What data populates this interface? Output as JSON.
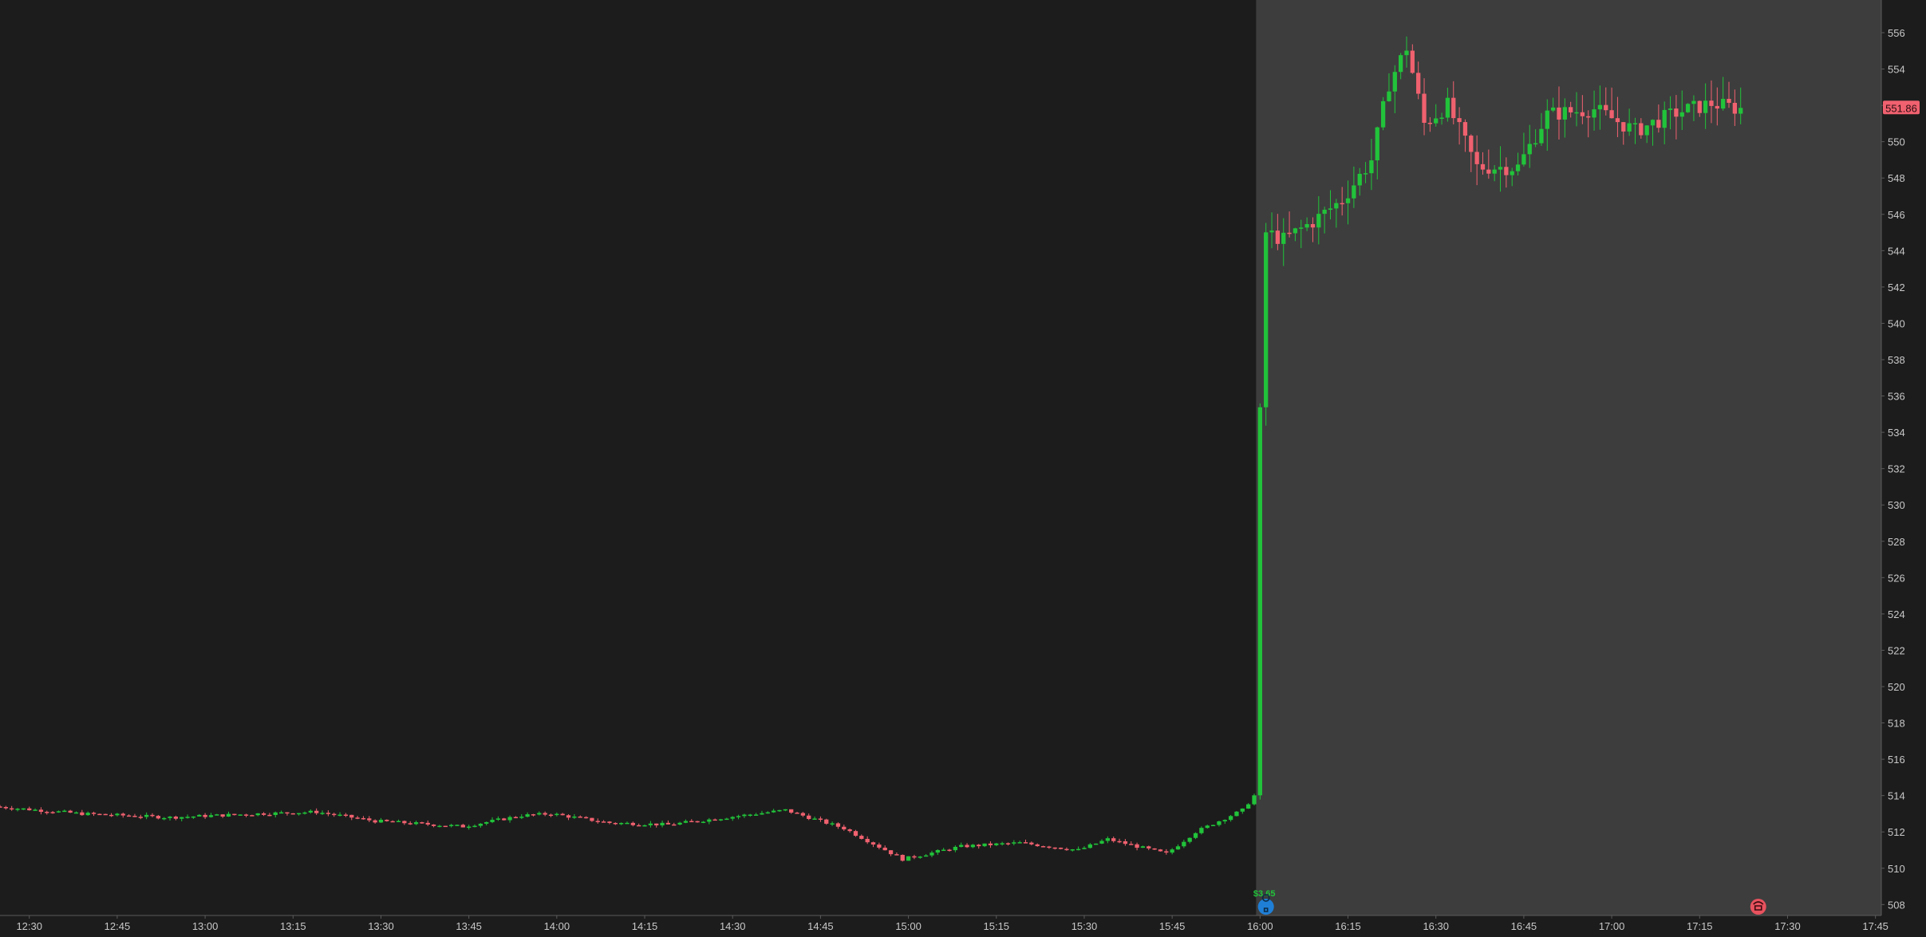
{
  "chart_data": {
    "type": "candlestick",
    "x_ticks": [
      "12:30",
      "12:45",
      "13:00",
      "13:15",
      "13:30",
      "13:45",
      "14:00",
      "14:15",
      "14:30",
      "14:45",
      "15:00",
      "15:15",
      "15:30",
      "15:45",
      "16:00",
      "16:15",
      "16:30",
      "16:45",
      "17:00",
      "17:15",
      "17:30",
      "17:45"
    ],
    "y_ticks": [
      508,
      510,
      512,
      514,
      516,
      518,
      520,
      522,
      524,
      526,
      528,
      530,
      532,
      534,
      536,
      538,
      540,
      542,
      544,
      546,
      548,
      550,
      552,
      554,
      556
    ],
    "ylim": [
      507.4,
      557.8
    ],
    "xlim": [
      "12:25",
      "17:46"
    ],
    "extended_hours_start": "16:00",
    "last_price": "551.86",
    "earnings_marker": {
      "value": "$3.65",
      "time": "16:01"
    },
    "dividend_marker": {
      "time": "17:25"
    },
    "colors": {
      "up": "#21c33a",
      "down": "#f0616f",
      "regular_bg": "#1c1c1c",
      "extended_bg": "#3d3d3d",
      "axis_text": "#c8c8c8",
      "price_badge": "#f0616f",
      "earnings_icon": "#1f7fd6",
      "dividend_icon": "#e8525e"
    },
    "key_points": [
      [
        "12:25",
        513.4
      ],
      [
        "12:40",
        513.0
      ],
      [
        "12:55",
        512.8
      ],
      [
        "13:10",
        513.0
      ],
      [
        "13:20",
        513.1
      ],
      [
        "13:30",
        512.6
      ],
      [
        "13:45",
        512.3
      ],
      [
        "13:55",
        512.9
      ],
      [
        "14:00",
        513.0
      ],
      [
        "14:10",
        512.5
      ],
      [
        "14:20",
        512.4
      ],
      [
        "14:35",
        513.0
      ],
      [
        "14:40",
        513.2
      ],
      [
        "14:50",
        512.2
      ],
      [
        "15:00",
        510.5
      ],
      [
        "15:10",
        511.2
      ],
      [
        "15:20",
        511.4
      ],
      [
        "15:30",
        511.0
      ],
      [
        "15:35",
        511.6
      ],
      [
        "15:45",
        510.8
      ],
      [
        "15:50",
        512.0
      ],
      [
        "15:58",
        513.2
      ],
      [
        "16:00",
        514.0
      ],
      [
        "16:01",
        535.0
      ],
      [
        "16:02",
        545.0
      ],
      [
        "16:05",
        544.6
      ],
      [
        "16:10",
        545.6
      ],
      [
        "16:15",
        546.8
      ],
      [
        "16:20",
        549.0
      ],
      [
        "16:23",
        553.2
      ],
      [
        "16:26",
        555.2
      ],
      [
        "16:29",
        551.0
      ],
      [
        "16:33",
        552.0
      ],
      [
        "16:38",
        548.6
      ],
      [
        "16:45",
        548.6
      ],
      [
        "16:50",
        551.5
      ],
      [
        "16:58",
        551.8
      ],
      [
        "17:05",
        550.6
      ],
      [
        "17:12",
        551.6
      ],
      [
        "17:18",
        552.1
      ],
      [
        "17:22",
        551.86
      ]
    ]
  }
}
